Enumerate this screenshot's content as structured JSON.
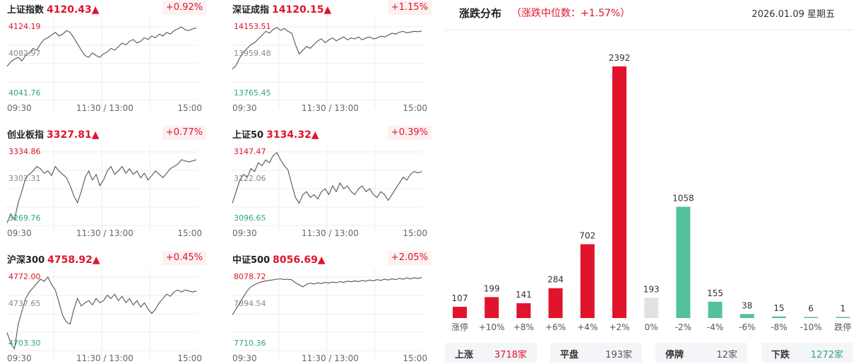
{
  "indices": [
    {
      "name": "上证指数",
      "value": "4120.43▲",
      "pct": "+0.92%",
      "high": "4124.19",
      "mid": "4082.97",
      "low": "4041.76",
      "series": [
        4080,
        4085,
        4088,
        4090,
        4086,
        4092,
        4095,
        4100,
        4098,
        4105,
        4110,
        4112,
        4115,
        4118,
        4114,
        4116,
        4120,
        4118,
        4112,
        4105,
        4098,
        4092,
        4090,
        4095,
        4092,
        4090,
        4094,
        4096,
        4100,
        4098,
        4102,
        4106,
        4104,
        4108,
        4110,
        4106,
        4108,
        4112,
        4110,
        4114,
        4112,
        4116,
        4114,
        4118,
        4116,
        4120,
        4122,
        4124,
        4121,
        4120,
        4122,
        4123
      ]
    },
    {
      "name": "深证成指",
      "value": "14120.15▲",
      "pct": "+1.15%",
      "high": "14153.51",
      "mid": "13959.48",
      "low": "13765.45",
      "series": [
        13930,
        13950,
        13990,
        14020,
        14040,
        14060,
        14070,
        14090,
        14110,
        14130,
        14120,
        14140,
        14150,
        14135,
        14145,
        14130,
        14120,
        14060,
        14010,
        14030,
        14050,
        14040,
        14060,
        14080,
        14090,
        14070,
        14085,
        14095,
        14080,
        14090,
        14100,
        14085,
        14095,
        14090,
        14100,
        14085,
        14095,
        14100,
        14090,
        14095,
        14105,
        14100,
        14110,
        14120,
        14115,
        14125,
        14130,
        14122,
        14126,
        14130,
        14128,
        14132
      ]
    },
    {
      "name": "创业板指",
      "value": "3327.81▲",
      "pct": "+0.77%",
      "high": "3334.86",
      "mid": "3302.31",
      "low": "3269.76",
      "series": [
        3272,
        3280,
        3275,
        3290,
        3300,
        3312,
        3315,
        3318,
        3322,
        3320,
        3316,
        3318,
        3314,
        3322,
        3318,
        3315,
        3312,
        3305,
        3296,
        3290,
        3300,
        3312,
        3318,
        3310,
        3315,
        3305,
        3310,
        3318,
        3322,
        3315,
        3318,
        3322,
        3316,
        3320,
        3315,
        3318,
        3312,
        3316,
        3310,
        3314,
        3318,
        3315,
        3312,
        3316,
        3320,
        3322,
        3324,
        3328,
        3327,
        3326,
        3327,
        3328
      ]
    },
    {
      "name": "上证50",
      "value": "3134.32▲",
      "pct": "+0.39%",
      "high": "3147.47",
      "mid": "3122.06",
      "low": "3096.65",
      "series": [
        3112,
        3120,
        3128,
        3132,
        3130,
        3136,
        3134,
        3140,
        3138,
        3142,
        3140,
        3145,
        3147,
        3142,
        3138,
        3135,
        3125,
        3116,
        3112,
        3118,
        3120,
        3116,
        3118,
        3115,
        3120,
        3122,
        3118,
        3124,
        3120,
        3126,
        3122,
        3124,
        3120,
        3118,
        3122,
        3124,
        3120,
        3122,
        3118,
        3116,
        3120,
        3118,
        3114,
        3118,
        3122,
        3126,
        3130,
        3128,
        3132,
        3134,
        3133,
        3134
      ]
    },
    {
      "name": "沪深300",
      "value": "4758.92▲",
      "pct": "+0.45%",
      "high": "4772.00",
      "mid": "4737.65",
      "low": "4703.30",
      "series": [
        4720,
        4710,
        4705,
        4728,
        4740,
        4752,
        4758,
        4762,
        4766,
        4770,
        4768,
        4772,
        4765,
        4760,
        4748,
        4736,
        4730,
        4728,
        4742,
        4752,
        4745,
        4748,
        4750,
        4746,
        4752,
        4748,
        4750,
        4755,
        4752,
        4756,
        4750,
        4754,
        4748,
        4752,
        4746,
        4750,
        4744,
        4748,
        4742,
        4738,
        4742,
        4748,
        4752,
        4756,
        4754,
        4758,
        4760,
        4758,
        4760,
        4759,
        4758,
        4759
      ]
    },
    {
      "name": "中证500",
      "value": "8056.69▲",
      "pct": "+2.05%",
      "high": "8078.72",
      "mid": "7894.54",
      "low": "7710.36",
      "series": [
        7890,
        7920,
        7950,
        7980,
        8010,
        8030,
        8040,
        8050,
        8055,
        8060,
        8062,
        8065,
        8068,
        8070,
        8066,
        8068,
        8065,
        8050,
        8040,
        8030,
        8042,
        8048,
        8044,
        8050,
        8046,
        8052,
        8048,
        8054,
        8050,
        8056,
        8052,
        8058,
        8055,
        8060,
        8056,
        8062,
        8058,
        8064,
        8060,
        8066,
        8062,
        8068,
        8064,
        8070,
        8066,
        8072,
        8068,
        8074,
        8070,
        8075,
        8072,
        8076
      ]
    }
  ],
  "time_labels": [
    "09:30",
    "11:30 / 13:00",
    "15:00"
  ],
  "distribution": {
    "title": "涨跌分布",
    "median": "（涨跌中位数：+1.57%）",
    "date": "2026.01.09 星期五",
    "chart_data": {
      "type": "bar",
      "categories": [
        "涨停",
        "+10%",
        "+8%",
        "+6%",
        "+4%",
        "+2%",
        "0%",
        "-2%",
        "-4%",
        "-6%",
        "-8%",
        "-10%",
        "跌停"
      ],
      "values": [
        107,
        199,
        141,
        284,
        702,
        2392,
        193,
        1058,
        155,
        38,
        15,
        6,
        1
      ],
      "colors": [
        "#e0142b",
        "#e0142b",
        "#e0142b",
        "#e0142b",
        "#e0142b",
        "#e0142b",
        "#e2e2e2",
        "#52c29c",
        "#52c29c",
        "#52c29c",
        "#52c29c",
        "#52c29c",
        "#52c29c"
      ]
    },
    "summary": [
      {
        "label": "上涨",
        "value": "3718家",
        "kind": "up"
      },
      {
        "label": "平盘",
        "value": "193家",
        "kind": "flat"
      },
      {
        "label": "停牌",
        "value": "12家",
        "kind": "flat"
      },
      {
        "label": "下跌",
        "value": "1272家",
        "kind": "dn"
      }
    ]
  },
  "colors": {
    "up": "#e0142b",
    "down": "#2ca57f",
    "flat": "#e2e2e2"
  }
}
